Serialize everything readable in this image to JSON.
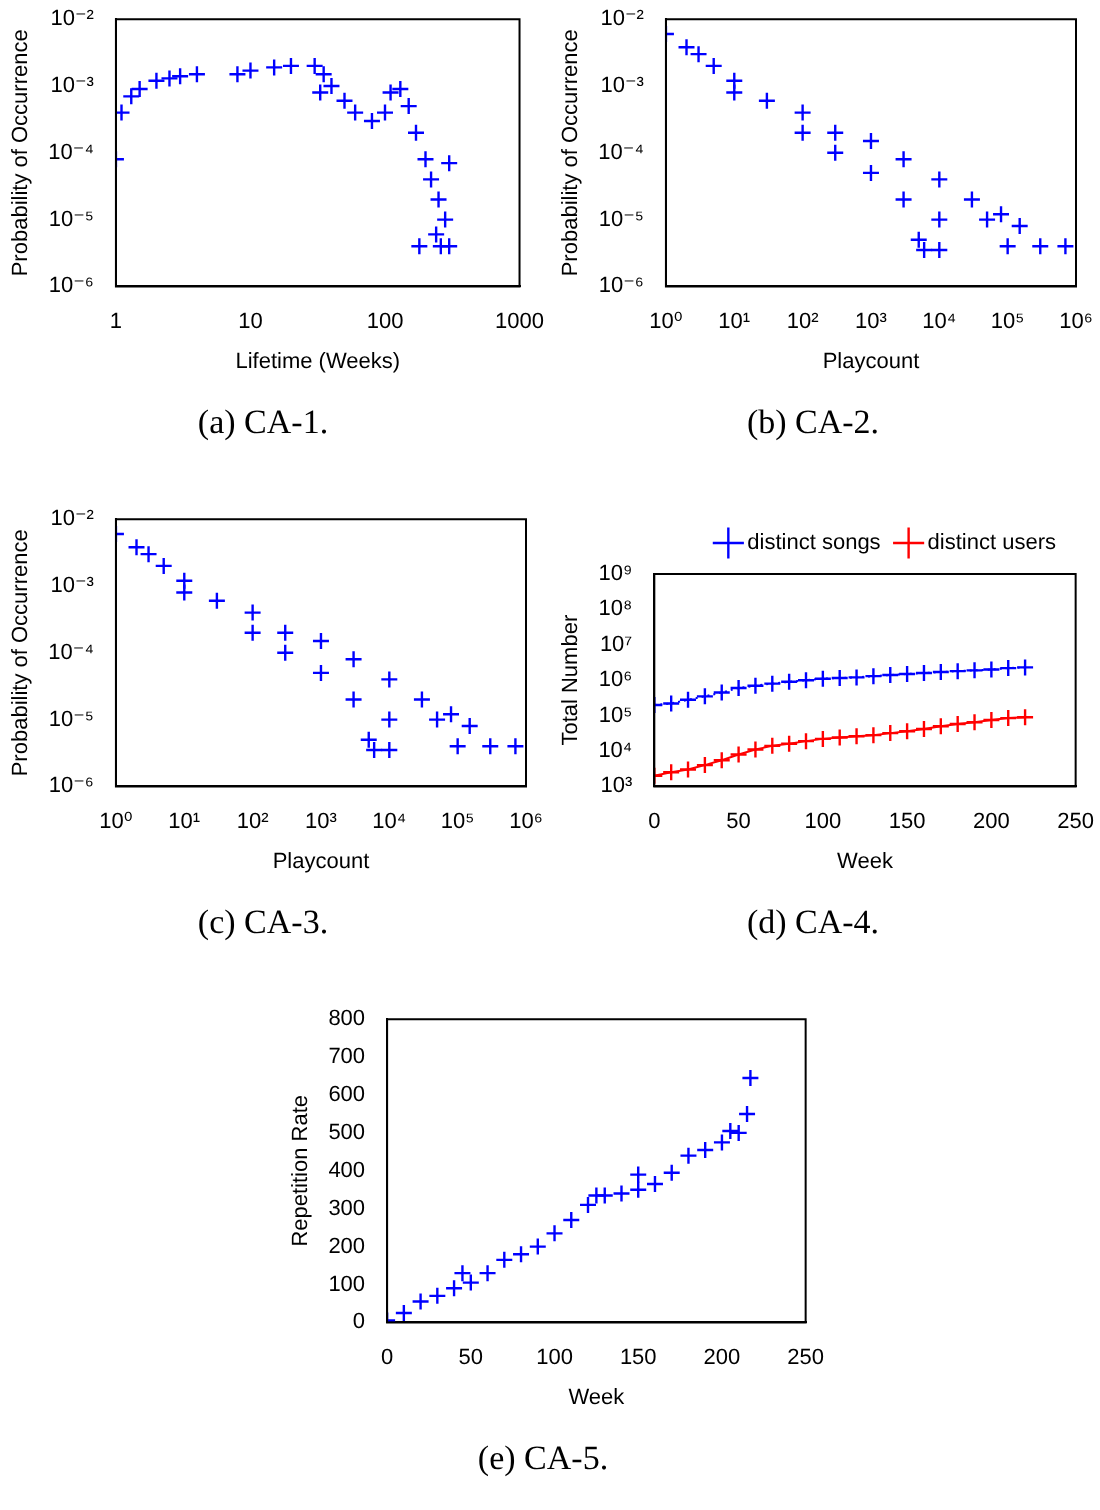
{
  "chart_data": [
    {
      "type": "scatter",
      "title": "(a) CA-1.",
      "xlabel": "Lifetime (Weeks)",
      "ylabel": "Probability of Occurrence",
      "log": "xy",
      "grid": false,
      "legend": false,
      "marker": "cross",
      "xlim": [
        1,
        1000
      ],
      "ylim": [
        1e-06,
        0.01
      ],
      "xticks": [
        1,
        10,
        100,
        1000
      ],
      "yticks": [
        {
          "value": 1e-06,
          "label": "10⁻⁶"
        },
        {
          "value": 1e-05,
          "label": "10⁻⁵"
        },
        {
          "value": 0.0001,
          "label": "10⁻⁴"
        },
        {
          "value": 0.001,
          "label": "10⁻³"
        },
        {
          "value": 0.01,
          "label": "10⁻²"
        }
      ],
      "series": [
        {
          "color": "#0000ff",
          "x": [
            1,
            1.1,
            1.3,
            1.5,
            2,
            2.5,
            3,
            4,
            8,
            10,
            15,
            20,
            30,
            35,
            33,
            40,
            50,
            60,
            80,
            100,
            110,
            130,
            150,
            170,
            200,
            220,
            250,
            280,
            300,
            260,
            180,
            300,
            240
          ],
          "values": [
            8e-05,
            0.0004,
            0.0007,
            0.0009,
            0.0012,
            0.0013,
            0.0014,
            0.0015,
            0.0015,
            0.0017,
            0.0019,
            0.002,
            0.002,
            0.0015,
            0.0008,
            0.001,
            0.0006,
            0.0004,
            0.0003,
            0.0004,
            0.0008,
            0.0009,
            0.0005,
            0.0002,
            8e-05,
            4e-05,
            2e-05,
            1e-05,
            7e-05,
            4e-06,
            4e-06,
            4e-06,
            6e-06
          ]
        }
      ]
    },
    {
      "type": "scatter",
      "title": "(b) CA-2.",
      "xlabel": "Playcount",
      "ylabel": "Probability of Occurrence",
      "log": "xy",
      "grid": false,
      "legend": false,
      "marker": "cross",
      "xlim": [
        1,
        1000000
      ],
      "ylim": [
        1e-06,
        0.01
      ],
      "xticks": [
        {
          "value": 1,
          "label": "10⁰"
        },
        {
          "value": 10,
          "label": "10¹"
        },
        {
          "value": 100,
          "label": "10²"
        },
        {
          "value": 1000,
          "label": "10³"
        },
        {
          "value": 10000,
          "label": "10⁴"
        },
        {
          "value": 100000,
          "label": "10⁵"
        },
        {
          "value": 1000000,
          "label": "10⁶"
        }
      ],
      "yticks": [
        {
          "value": 1e-06,
          "label": "10⁻⁶"
        },
        {
          "value": 1e-05,
          "label": "10⁻⁵"
        },
        {
          "value": 0.0001,
          "label": "10⁻⁴"
        },
        {
          "value": 0.001,
          "label": "10⁻³"
        },
        {
          "value": 0.01,
          "label": "10⁻²"
        }
      ],
      "series": [
        {
          "color": "#0000ff",
          "x": [
            1,
            2,
            3,
            5,
            10,
            10,
            30,
            100,
            100,
            300,
            300,
            1000,
            1000,
            3000,
            3000,
            5000,
            6000,
            10000,
            10000,
            30000,
            50000,
            80000,
            100000,
            150000,
            300000,
            700000,
            10000
          ],
          "values": [
            0.006,
            0.0038,
            0.003,
            0.002,
            0.0012,
            0.0008,
            0.0006,
            0.0004,
            0.0002,
            0.0002,
            0.0001,
            0.00015,
            5e-05,
            8e-05,
            2e-05,
            5e-06,
            3.5e-06,
            4e-05,
            1e-05,
            2e-05,
            1e-05,
            1.2e-05,
            4e-06,
            8e-06,
            4e-06,
            4e-06,
            3.5e-06
          ]
        }
      ]
    },
    {
      "type": "scatter",
      "title": "(c) CA-3.",
      "xlabel": "Playcount",
      "ylabel": "Probability of Occurrence",
      "log": "xy",
      "grid": false,
      "legend": false,
      "marker": "cross",
      "xlim": [
        1,
        1000000
      ],
      "ylim": [
        1e-06,
        0.01
      ],
      "xticks": [
        {
          "value": 1,
          "label": "10⁰"
        },
        {
          "value": 10,
          "label": "10¹"
        },
        {
          "value": 100,
          "label": "10²"
        },
        {
          "value": 1000,
          "label": "10³"
        },
        {
          "value": 10000,
          "label": "10⁴"
        },
        {
          "value": 100000,
          "label": "10⁵"
        },
        {
          "value": 1000000,
          "label": "10⁶"
        }
      ],
      "yticks": [
        {
          "value": 1e-06,
          "label": "10⁻⁶"
        },
        {
          "value": 1e-05,
          "label": "10⁻⁵"
        },
        {
          "value": 0.0001,
          "label": "10⁻⁴"
        },
        {
          "value": 0.001,
          "label": "10⁻³"
        },
        {
          "value": 0.01,
          "label": "10⁻²"
        }
      ],
      "series": [
        {
          "color": "#0000ff",
          "x": [
            1,
            2,
            3,
            5,
            10,
            10,
            30,
            100,
            100,
            300,
            300,
            1000,
            1000,
            3000,
            3000,
            5000,
            6000,
            10000,
            10000,
            30000,
            50000,
            80000,
            100000,
            150000,
            300000,
            700000,
            10000
          ],
          "values": [
            0.006,
            0.0038,
            0.003,
            0.002,
            0.0012,
            0.0008,
            0.0006,
            0.0004,
            0.0002,
            0.0002,
            0.0001,
            0.00015,
            5e-05,
            8e-05,
            2e-05,
            5e-06,
            3.5e-06,
            4e-05,
            1e-05,
            2e-05,
            1e-05,
            1.2e-05,
            4e-06,
            8e-06,
            4e-06,
            4e-06,
            3.5e-06
          ]
        }
      ]
    },
    {
      "type": "line",
      "title": "(d) CA-4.",
      "xlabel": "Week",
      "ylabel": "Total Number",
      "log": "y",
      "grid": false,
      "legend": "top right",
      "xlim": [
        0,
        250
      ],
      "ylim": [
        1000,
        1000000000
      ],
      "xticks": [
        0,
        50,
        100,
        150,
        200,
        250
      ],
      "yticks": [
        {
          "value": 1000,
          "label": "10³"
        },
        {
          "value": 10000,
          "label": "10⁴"
        },
        {
          "value": 100000,
          "label": "10⁵"
        },
        {
          "value": 1000000,
          "label": "10⁶"
        },
        {
          "value": 10000000,
          "label": "10⁷"
        },
        {
          "value": 100000000,
          "label": "10⁸"
        },
        {
          "value": 1000000000,
          "label": "10⁹"
        }
      ],
      "x": [
        0,
        10,
        20,
        30,
        40,
        50,
        60,
        70,
        80,
        90,
        100,
        110,
        120,
        130,
        140,
        150,
        160,
        170,
        180,
        190,
        200,
        210,
        220
      ],
      "series": [
        {
          "name": "distinct songs",
          "color": "#0000ff",
          "marker": "cross",
          "line_style": "dotted",
          "values": [
            200000,
            220000,
            280000,
            350000,
            450000,
            600000,
            700000,
            800000,
            900000,
            1000000,
            1100000,
            1150000,
            1200000,
            1300000,
            1400000,
            1500000,
            1600000,
            1700000,
            1800000,
            1900000,
            2000000,
            2200000,
            2300000
          ]
        },
        {
          "name": "distinct users",
          "color": "#ff0000",
          "marker": "cross",
          "line_style": "solid",
          "values": [
            2000,
            2500,
            3000,
            4000,
            5500,
            8000,
            11000,
            14000,
            16000,
            19000,
            22000,
            24000,
            26000,
            28000,
            32000,
            36000,
            42000,
            50000,
            58000,
            65000,
            75000,
            85000,
            90000
          ]
        }
      ]
    },
    {
      "type": "scatter",
      "title": "(e) CA-5.",
      "xlabel": "Week",
      "ylabel": "Repetition Rate",
      "grid": false,
      "legend": false,
      "marker": "cross",
      "xlim": [
        0,
        250
      ],
      "ylim": [
        0,
        800
      ],
      "xticks": [
        0,
        50,
        100,
        150,
        200,
        250
      ],
      "yticks": [
        0,
        100,
        200,
        300,
        400,
        500,
        600,
        700,
        800
      ],
      "series": [
        {
          "color": "#0000ff",
          "x": [
            0,
            10,
            20,
            30,
            40,
            45,
            50,
            60,
            70,
            80,
            90,
            100,
            110,
            120,
            125,
            130,
            140,
            150,
            150,
            160,
            170,
            180,
            190,
            200,
            205,
            210,
            215,
            217
          ],
          "values": [
            5,
            25,
            55,
            70,
            90,
            130,
            105,
            130,
            165,
            180,
            200,
            235,
            270,
            310,
            335,
            335,
            340,
            350,
            390,
            365,
            395,
            440,
            455,
            475,
            505,
            500,
            550,
            645
          ]
        }
      ]
    }
  ]
}
